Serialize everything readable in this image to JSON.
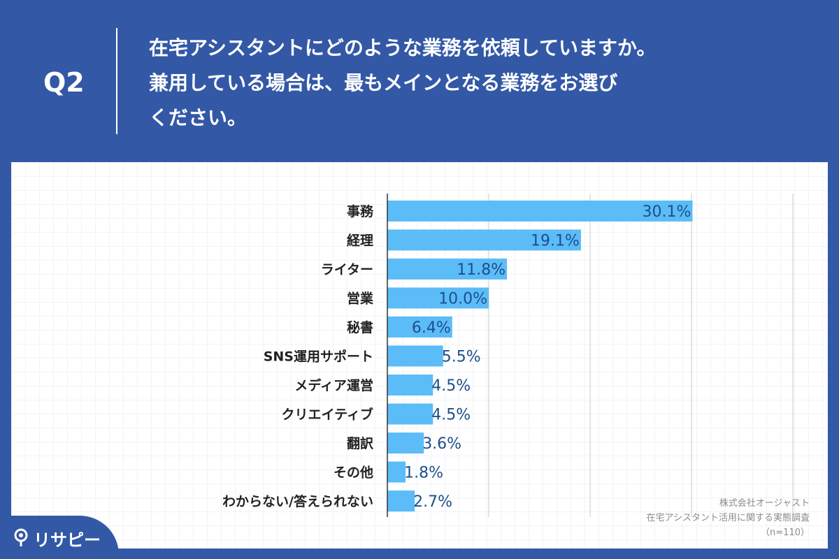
{
  "header": {
    "question_id": "Q2",
    "question_lines": [
      "在宅アシスタントにどのような業務を依頼していますか。",
      "兼用している場合は、最もメインとなる業務をお選び",
      "ください。"
    ]
  },
  "colors": {
    "background": "#3358a6",
    "bar": "#5bbcf8",
    "value_text": "#1d4f8a",
    "label_text": "#222222"
  },
  "chart_data": {
    "type": "bar",
    "orientation": "horizontal",
    "categories": [
      "事務",
      "経理",
      "ライター",
      "営業",
      "秘書",
      "SNS運用サポート",
      "メディア運営",
      "クリエイティブ",
      "翻訳",
      "その他",
      "わからない/答えられない"
    ],
    "values": [
      30.1,
      19.1,
      11.8,
      10.0,
      6.4,
      5.5,
      4.5,
      4.5,
      3.6,
      1.8,
      2.7
    ],
    "value_labels": [
      "30.1%",
      "19.1%",
      "11.8%",
      "10.0%",
      "6.4%",
      "5.5%",
      "4.5%",
      "4.5%",
      "3.6%",
      "1.8%",
      "2.7%"
    ],
    "unit": "%",
    "xlim": [
      0,
      40
    ],
    "gridlines": [
      10,
      20,
      30,
      40
    ],
    "legend": "none"
  },
  "source": {
    "company": "株式会社オージャスト",
    "survey": "在宅アシスタント活用に関する実態調査",
    "sample": "（n=110）"
  },
  "brand": {
    "name": "リサピー",
    "icon": "pin-icon"
  }
}
